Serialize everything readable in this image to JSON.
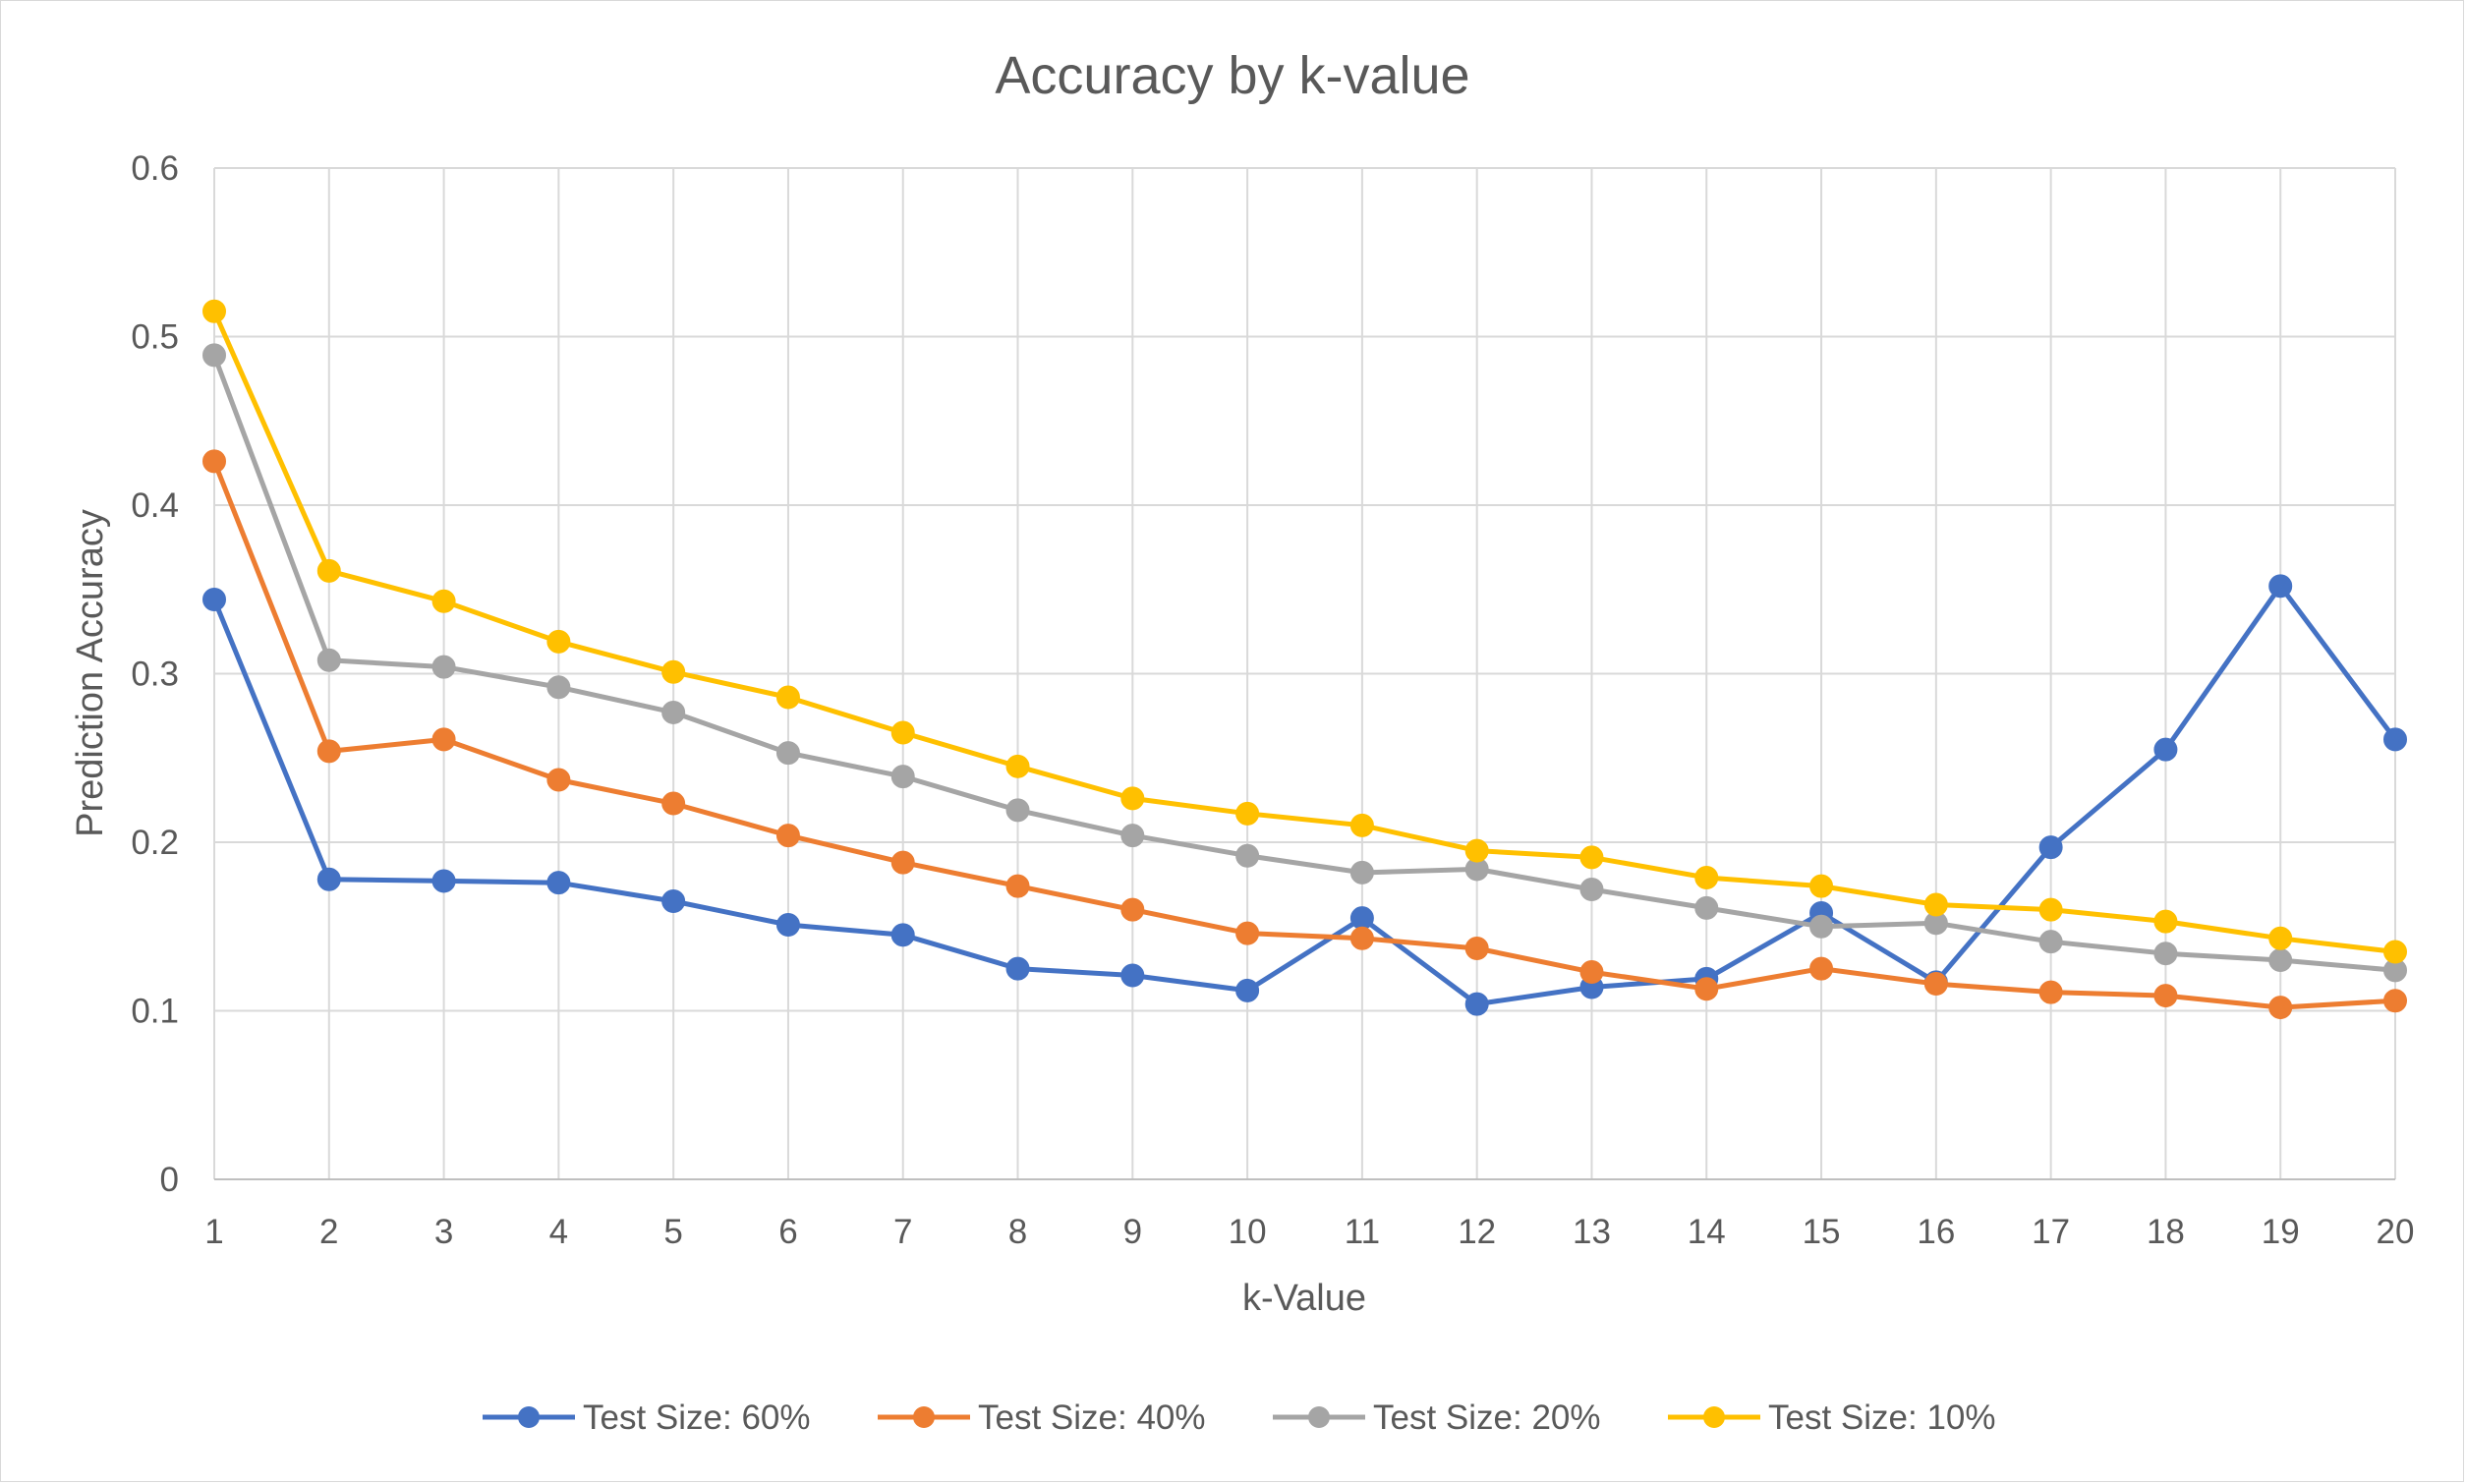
{
  "chart_data": {
    "type": "line",
    "title": "Accuracy by k-value",
    "xlabel": "k-Value",
    "ylabel": "Prediction Accuracy",
    "categories": [
      "1",
      "2",
      "3",
      "4",
      "5",
      "6",
      "7",
      "8",
      "9",
      "10",
      "11",
      "12",
      "13",
      "14",
      "15",
      "16",
      "17",
      "18",
      "19",
      "20"
    ],
    "ylim": [
      0,
      0.6
    ],
    "yticks": [
      "0",
      "0.1",
      "0.2",
      "0.3",
      "0.4",
      "0.5",
      "0.6"
    ],
    "ytick_values": [
      0,
      0.1,
      0.2,
      0.3,
      0.4,
      0.5,
      0.6
    ],
    "grid": true,
    "legend_position": "bottom",
    "series": [
      {
        "name": "Test Size: 60%",
        "color": "#4472C4",
        "values": [
          0.344,
          0.178,
          0.177,
          0.176,
          0.165,
          0.151,
          0.145,
          0.125,
          0.121,
          0.112,
          0.155,
          0.104,
          0.114,
          0.119,
          0.158,
          0.117,
          0.197,
          0.255,
          0.352,
          0.261
        ]
      },
      {
        "name": "Test Size: 40%",
        "color": "#ED7D31",
        "values": [
          0.426,
          0.254,
          0.261,
          0.237,
          0.223,
          0.204,
          0.188,
          0.174,
          0.16,
          0.146,
          0.143,
          0.137,
          0.123,
          0.113,
          0.125,
          0.116,
          0.111,
          0.109,
          0.102,
          0.106
        ]
      },
      {
        "name": "Test Size: 20%",
        "color": "#A5A5A5",
        "values": [
          0.489,
          0.308,
          0.304,
          0.292,
          0.277,
          0.253,
          0.239,
          0.219,
          0.204,
          0.192,
          0.182,
          0.184,
          0.172,
          0.161,
          0.15,
          0.152,
          0.141,
          0.134,
          0.13,
          0.124
        ]
      },
      {
        "name": "Test Size: 10%",
        "color": "#FFC000",
        "values": [
          0.515,
          0.361,
          0.343,
          0.319,
          0.301,
          0.286,
          0.265,
          0.245,
          0.226,
          0.217,
          0.21,
          0.195,
          0.191,
          0.179,
          0.174,
          0.163,
          0.16,
          0.153,
          0.143,
          0.135
        ]
      }
    ]
  }
}
